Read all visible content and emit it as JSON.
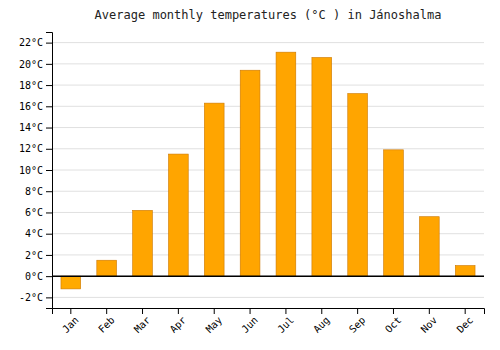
{
  "chart_data": {
    "type": "bar",
    "title": "Average monthly temperatures (°C ) in Jánoshalma",
    "categories": [
      "Jan",
      "Feb",
      "Mar",
      "Apr",
      "May",
      "Jun",
      "Jul",
      "Aug",
      "Sep",
      "Oct",
      "Nov",
      "Dec"
    ],
    "values": [
      -1.2,
      1.5,
      6.2,
      11.5,
      16.3,
      19.4,
      21.1,
      20.6,
      17.2,
      11.9,
      5.6,
      1.0
    ],
    "colors": [
      "#FFAA00",
      "#FFA500",
      "#FFA500",
      "#FFA500",
      "#FFA500",
      "#FFA500",
      "#FFA500",
      "#FFA500",
      "#FFA500",
      "#FFA500",
      "#FFA500",
      "#FFA500"
    ],
    "ylim": [
      -3,
      23
    ],
    "yticks": [
      {
        "value": -2,
        "label": "-2°C"
      },
      {
        "value": 0,
        "label": "0°C"
      },
      {
        "value": 2,
        "label": "2°C"
      },
      {
        "value": 4,
        "label": "4°C"
      },
      {
        "value": 6,
        "label": "6°C"
      },
      {
        "value": 8,
        "label": "8°C"
      },
      {
        "value": 10,
        "label": "10°C"
      },
      {
        "value": 12,
        "label": "12°C"
      },
      {
        "value": 14,
        "label": "14°C"
      },
      {
        "value": 16,
        "label": "16°C"
      },
      {
        "value": 18,
        "label": "18°C"
      },
      {
        "value": 20,
        "label": "20°C"
      },
      {
        "value": 22,
        "label": "22°C"
      }
    ],
    "grid": true
  }
}
